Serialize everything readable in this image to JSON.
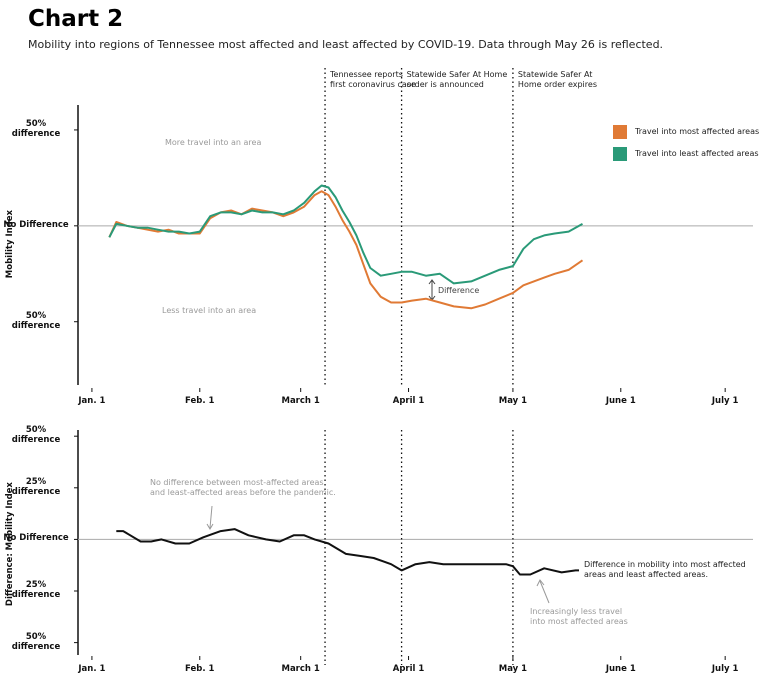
{
  "header": {
    "title": "Chart 2",
    "subtitle": "Mobility into regions of Tennessee most affected and least affected by COVID-19. Data through May 26 is reflected."
  },
  "chart_data": [
    {
      "type": "line",
      "ylabel": "Mobility Index",
      "legend": "top-right",
      "xlim": [
        -4,
        190
      ],
      "ylim": [
        -83,
        63
      ],
      "xticks": [
        {
          "value": 0,
          "label": "Jan. 1"
        },
        {
          "value": 31,
          "label": "Feb. 1"
        },
        {
          "value": 60,
          "label": "March 1"
        },
        {
          "value": 91,
          "label": "April 1"
        },
        {
          "value": 121,
          "label": "May 1"
        },
        {
          "value": 152,
          "label": "June 1"
        },
        {
          "value": 182,
          "label": "July 1"
        }
      ],
      "yticks": [
        {
          "value": 50,
          "label": "50%\ndifference"
        },
        {
          "value": 0,
          "label": "No Difference"
        },
        {
          "value": -50,
          "label": "50%\ndifference"
        }
      ],
      "x": [
        5,
        7,
        10,
        13,
        16,
        19,
        22,
        25,
        28,
        31,
        34,
        37,
        40,
        43,
        46,
        49,
        52,
        55,
        58,
        61,
        64,
        66,
        68,
        70,
        72,
        74,
        76,
        78,
        80,
        83,
        86,
        89,
        92,
        96,
        100,
        104,
        109,
        113,
        117,
        121,
        124,
        127,
        130,
        133,
        137,
        141
      ],
      "series": [
        {
          "name": "Travel into most affected areas",
          "color": "#e07a35",
          "values": [
            -6,
            2,
            0,
            -1,
            -2,
            -3,
            -2,
            -4,
            -4,
            -4,
            4,
            7,
            8,
            6,
            9,
            8,
            7,
            5,
            7,
            10,
            16,
            18,
            16,
            10,
            3,
            -3,
            -10,
            -20,
            -30,
            -37,
            -40,
            -40,
            -39,
            -38,
            -40,
            -42,
            -43,
            -41,
            -38,
            -35,
            -31,
            -29,
            -27,
            -25,
            -23,
            -18
          ]
        },
        {
          "name": "Travel into least affected areas",
          "color": "#2a9a78",
          "values": [
            -6,
            1,
            0,
            -1,
            -1,
            -2,
            -3,
            -3,
            -4,
            -3,
            5,
            7,
            7,
            6,
            8,
            7,
            7,
            6,
            8,
            12,
            18,
            21,
            20,
            15,
            8,
            2,
            -5,
            -14,
            -22,
            -26,
            -25,
            -24,
            -24,
            -26,
            -25,
            -30,
            -29,
            -26,
            -23,
            -21,
            -12,
            -7,
            -5,
            -4,
            -3,
            1
          ]
        }
      ],
      "events": [
        {
          "x": 67,
          "label": "Tennessee reports\nfirst coronavirus case"
        },
        {
          "x": 89,
          "label": "Statewide Safer At Home\norder is announced"
        },
        {
          "x": 121,
          "label": "Statewide Safer At\nHome order expires"
        }
      ],
      "annotations": [
        "More travel into an area",
        "Less travel into an area",
        "Difference"
      ]
    },
    {
      "type": "line",
      "ylabel": "Difference: Mobility Index",
      "xlim": [
        -4,
        190
      ],
      "ylim": [
        -56,
        53
      ],
      "xticks": [
        {
          "value": 0,
          "label": "Jan. 1"
        },
        {
          "value": 31,
          "label": "Feb. 1"
        },
        {
          "value": 60,
          "label": "March 1"
        },
        {
          "value": 91,
          "label": "April 1"
        },
        {
          "value": 121,
          "label": "May 1"
        },
        {
          "value": 152,
          "label": "June 1"
        },
        {
          "value": 182,
          "label": "July 1"
        }
      ],
      "yticks": [
        {
          "value": 50,
          "label": "50%\ndifference"
        },
        {
          "value": 25,
          "label": "25%\ndifference"
        },
        {
          "value": 0,
          "label": "No Difference"
        },
        {
          "value": -25,
          "label": "25%\ndifference"
        },
        {
          "value": -50,
          "label": "50%\ndifference"
        }
      ],
      "x": [
        7,
        9,
        14,
        17,
        20,
        24,
        28,
        32,
        37,
        41,
        45,
        50,
        54,
        58,
        61,
        64,
        68,
        73,
        77,
        81,
        86,
        89,
        93,
        97,
        101,
        106,
        110,
        114,
        119,
        121,
        123,
        126,
        130,
        135,
        139,
        140
      ],
      "series": [
        {
          "name": "Difference",
          "color": "#111111",
          "values": [
            4,
            4,
            -1,
            -1,
            0,
            -2,
            -2,
            1,
            4,
            5,
            2,
            0,
            -1,
            2,
            2,
            0,
            -2,
            -7,
            -8,
            -9,
            -12,
            -15,
            -12,
            -11,
            -12,
            -12,
            -12,
            -12,
            -12,
            -13,
            -17,
            -17,
            -14,
            -16,
            -15,
            -15
          ]
        }
      ],
      "events": [
        {
          "x": 67
        },
        {
          "x": 89
        },
        {
          "x": 121
        }
      ],
      "annotations": [
        "No difference between most-affected areas\nand least-affected areas before the pandemic.",
        "Difference in mobility into most affected\nareas and least affected areas.",
        "Increasingly less travel\ninto most affected areas"
      ]
    }
  ]
}
